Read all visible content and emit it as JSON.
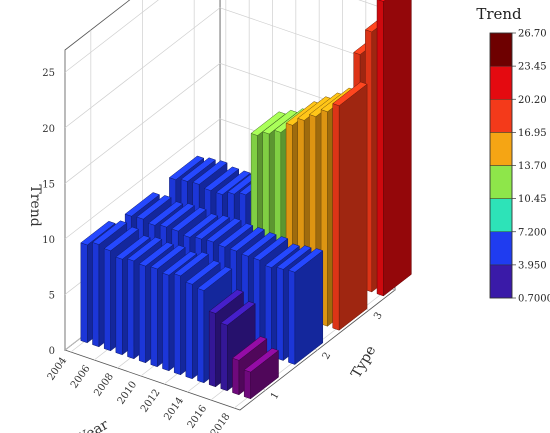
{
  "chart_data": {
    "type": "bar3d",
    "title": "",
    "zlabel": "Trend",
    "xlabel": "Year",
    "ylabel": "Type",
    "zlim": [
      0,
      27
    ],
    "z_ticks": [
      "0",
      "5",
      "10",
      "15",
      "20",
      "25"
    ],
    "x_ticks": [
      "2004",
      "2006",
      "2008",
      "2010",
      "2012",
      "2014",
      "2016",
      "2018"
    ],
    "y_ticks": [
      "1",
      "2",
      "3"
    ],
    "years": [
      2004,
      2005,
      2006,
      2007,
      2008,
      2009,
      2010,
      2011,
      2012,
      2013,
      2014,
      2015,
      2016,
      2017,
      2018
    ],
    "series": [
      {
        "type": "1",
        "values": [
          8.8,
          9.2,
          9.0,
          8.6,
          8.8,
          8.7,
          8.8,
          8.6,
          8.9,
          8.5,
          8.3,
          6.6,
          5.9,
          3.1,
          2.4
        ]
      },
      {
        "type": "2",
        "values": [
          8.3,
          8.4,
          8.2,
          8.4,
          8.4,
          8.2,
          8.4,
          8.5,
          8.4,
          8.4,
          8.3,
          8.3,
          8.0,
          8.2,
          8.3
        ]
      },
      {
        "type": "3",
        "values": [
          8.5,
          8.7,
          8.8,
          8.6,
          8.6,
          9.0,
          9.3,
          15.0,
          15.5,
          16.0,
          17.0,
          17.8,
          18.5,
          19.3,
          20.2
        ]
      }
    ],
    "extra_bars": [
      {
        "year": 2016,
        "type": "3",
        "value": 21.0
      },
      {
        "year": 2017,
        "type": "3",
        "value": 23.4
      },
      {
        "year": 2018,
        "type": "3",
        "value": 26.5
      }
    ],
    "legend": {
      "title": "Trend",
      "position": "right",
      "levels": [
        "0.7000",
        "3.950",
        "7.200",
        "10.45",
        "13.70",
        "16.95",
        "20.20",
        "23.45",
        "26.70"
      ],
      "colors": [
        "#7b0a8a",
        "#3a1aa8",
        "#1f3cf0",
        "#2de3b8",
        "#8ee64a",
        "#f5a514",
        "#f43a1a",
        "#e40a10",
        "#6e0000"
      ]
    },
    "grid": true
  }
}
